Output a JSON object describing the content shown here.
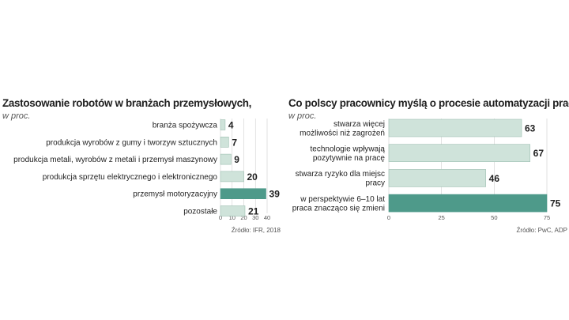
{
  "colors": {
    "bar": "#cfe3da",
    "bar_stroke": "#9dbfb1",
    "highlight": "#4e9a8a",
    "grid": "#cfcfcf"
  },
  "chart_data": [
    {
      "type": "bar",
      "orientation": "horizontal",
      "title": "Zastosowanie robotów w branżach przemysłowych,",
      "unit": "w proc.",
      "source": "Źródło: IFR, 2018",
      "categories": [
        "branża spożywcza",
        "produkcja wyrobów z gumy i tworzyw sztucznych",
        "produkcja metali, wyrobów z metali i przemysł maszynowy",
        "produkcja sprzętu elektrycznego i elektronicznego",
        "przemysł motoryzacyjny",
        "pozostałe"
      ],
      "values": [
        4,
        7,
        9,
        20,
        39,
        21
      ],
      "highlight_index": 4,
      "xlim": [
        0,
        40
      ],
      "ticks": [
        0,
        10,
        20,
        30,
        40
      ]
    },
    {
      "type": "bar",
      "orientation": "horizontal",
      "title": "Co polscy pracownicy myślą o procesie automatyzacji pracy,",
      "unit": "w proc.",
      "source": "Źródło: PwC, ADP",
      "categories": [
        [
          "stwarza więcej",
          "możliwości niż zagrożeń"
        ],
        [
          "technologie wpływają",
          "pozytywnie na pracę"
        ],
        [
          "stwarza ryzyko dla miejsc",
          "pracy"
        ],
        [
          "w perspektywie 6–10 lat",
          "praca znacząco się zmieni"
        ]
      ],
      "values": [
        63,
        67,
        46,
        75
      ],
      "highlight_index": 3,
      "xlim": [
        0,
        75
      ],
      "ticks": [
        0,
        25,
        50,
        75
      ]
    }
  ]
}
